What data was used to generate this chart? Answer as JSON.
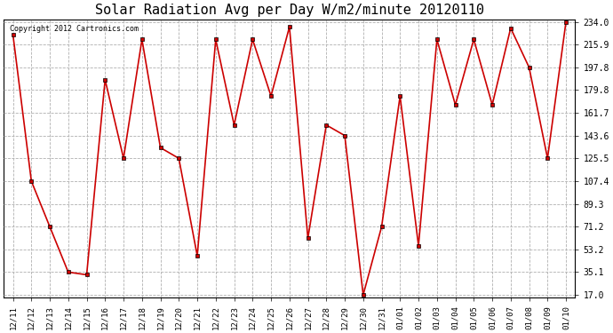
{
  "title": "Solar Radiation Avg per Day W/m2/minute 20120110",
  "copyright_text": "Copyright 2012 Cartronics.com",
  "x_labels": [
    "12/11",
    "12/12",
    "12/13",
    "12/14",
    "12/15",
    "12/16",
    "12/17",
    "12/18",
    "12/19",
    "12/20",
    "12/21",
    "12/22",
    "12/23",
    "12/24",
    "12/25",
    "12/26",
    "12/27",
    "12/28",
    "12/29",
    "12/30",
    "12/31",
    "01/01",
    "01/02",
    "01/03",
    "01/04",
    "01/05",
    "01/06",
    "01/07",
    "01/08",
    "01/09",
    "01/10"
  ],
  "y_values": [
    224.0,
    107.4,
    71.2,
    35.1,
    33.0,
    188.0,
    125.5,
    220.0,
    134.0,
    125.5,
    48.0,
    220.0,
    152.0,
    220.0,
    175.0,
    230.0,
    62.0,
    152.0,
    143.6,
    17.0,
    71.2,
    175.0,
    56.0,
    220.0,
    168.0,
    220.0,
    168.0,
    229.0,
    197.8,
    125.5,
    234.0
  ],
  "y_ticks": [
    17.0,
    35.1,
    53.2,
    71.2,
    89.3,
    107.4,
    125.5,
    143.6,
    161.7,
    179.8,
    197.8,
    215.9,
    234.0
  ],
  "line_color": "#cc0000",
  "marker_color": "#000000",
  "background_color": "#ffffff",
  "grid_color": "#b0b0b0",
  "title_fontsize": 11,
  "ylim_min": 17.0,
  "ylim_max": 234.0
}
